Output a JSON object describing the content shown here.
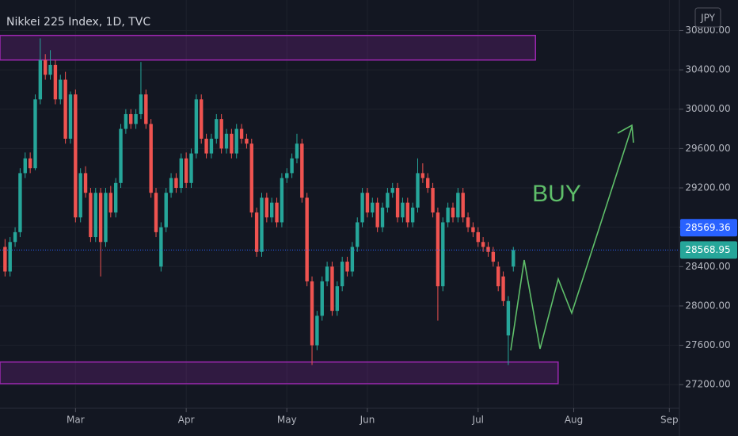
{
  "chart_data": {
    "type": "candlestick",
    "title": "Nikkei 225 Index, 1D, TVC",
    "currency": "JPY",
    "annotation": "BUY",
    "up_color": "#26a69a",
    "down_color": "#ef5350",
    "candles": [
      [
        28600,
        28680,
        28300,
        28350
      ],
      [
        28350,
        28700,
        28300,
        28650
      ],
      [
        28650,
        28800,
        28600,
        28750
      ],
      [
        28750,
        29400,
        28700,
        29350
      ],
      [
        29350,
        29560,
        29300,
        29500
      ],
      [
        29500,
        29560,
        29350,
        29400
      ],
      [
        29400,
        30150,
        29380,
        30100
      ],
      [
        30100,
        30720,
        30050,
        30500
      ],
      [
        30500,
        30560,
        30300,
        30350
      ],
      [
        30350,
        30600,
        30300,
        30450
      ],
      [
        30450,
        30500,
        30050,
        30100
      ],
      [
        30100,
        30350,
        30050,
        30300
      ],
      [
        30300,
        30380,
        29650,
        29700
      ],
      [
        29700,
        30180,
        29650,
        30150
      ],
      [
        30150,
        30200,
        28850,
        28900
      ],
      [
        28900,
        29400,
        28850,
        29350
      ],
      [
        29350,
        29420,
        29100,
        29150
      ],
      [
        29150,
        29200,
        28650,
        28700
      ],
      [
        28700,
        29200,
        28650,
        29150
      ],
      [
        29150,
        29200,
        28300,
        28650
      ],
      [
        28650,
        29200,
        28600,
        29150
      ],
      [
        29150,
        29220,
        28900,
        28950
      ],
      [
        28950,
        29300,
        28900,
        29250
      ],
      [
        29250,
        29850,
        29200,
        29800
      ],
      [
        29800,
        30000,
        29750,
        29950
      ],
      [
        29950,
        30000,
        29800,
        29850
      ],
      [
        29850,
        30000,
        29800,
        29950
      ],
      [
        29950,
        30480,
        29900,
        30150
      ],
      [
        30150,
        30200,
        29800,
        29850
      ],
      [
        29850,
        29900,
        29100,
        29150
      ],
      [
        29150,
        29200,
        28700,
        28750
      ],
      [
        28400,
        28850,
        28350,
        28800
      ],
      [
        28800,
        29200,
        28750,
        29150
      ],
      [
        29150,
        29350,
        29100,
        29300
      ],
      [
        29300,
        29350,
        29150,
        29200
      ],
      [
        29200,
        29550,
        29150,
        29500
      ],
      [
        29500,
        29560,
        29200,
        29250
      ],
      [
        29250,
        29600,
        29200,
        29550
      ],
      [
        29550,
        30150,
        29500,
        30100
      ],
      [
        30100,
        30150,
        29650,
        29700
      ],
      [
        29700,
        29750,
        29500,
        29550
      ],
      [
        29550,
        29750,
        29500,
        29700
      ],
      [
        29700,
        29950,
        29650,
        29900
      ],
      [
        29900,
        29950,
        29550,
        29600
      ],
      [
        29600,
        29800,
        29550,
        29750
      ],
      [
        29750,
        29800,
        29500,
        29550
      ],
      [
        29550,
        29850,
        29500,
        29800
      ],
      [
        29800,
        29850,
        29650,
        29700
      ],
      [
        29700,
        29750,
        29600,
        29650
      ],
      [
        29650,
        29700,
        28900,
        28950
      ],
      [
        28950,
        29000,
        28500,
        28550
      ],
      [
        28550,
        29150,
        28500,
        29100
      ],
      [
        29100,
        29150,
        28850,
        28900
      ],
      [
        28900,
        29100,
        28850,
        29050
      ],
      [
        29050,
        29100,
        28800,
        28850
      ],
      [
        28850,
        29350,
        28800,
        29300
      ],
      [
        29300,
        29400,
        29250,
        29350
      ],
      [
        29350,
        29550,
        29300,
        29500
      ],
      [
        29500,
        29750,
        29450,
        29650
      ],
      [
        29650,
        29700,
        29050,
        29100
      ],
      [
        29100,
        29150,
        28200,
        28250
      ],
      [
        28250,
        28300,
        27400,
        27600
      ],
      [
        27600,
        27950,
        27550,
        27900
      ],
      [
        27900,
        28300,
        27850,
        28250
      ],
      [
        28250,
        28450,
        28200,
        28400
      ],
      [
        28400,
        28450,
        27900,
        27950
      ],
      [
        27950,
        28250,
        27900,
        28200
      ],
      [
        28200,
        28500,
        28150,
        28450
      ],
      [
        28450,
        28500,
        28300,
        28350
      ],
      [
        28350,
        28650,
        28300,
        28600
      ],
      [
        28600,
        28900,
        28550,
        28850
      ],
      [
        28850,
        29200,
        28800,
        29150
      ],
      [
        29150,
        29200,
        28900,
        28950
      ],
      [
        28950,
        29100,
        28900,
        29050
      ],
      [
        29050,
        29100,
        28750,
        28800
      ],
      [
        28800,
        29050,
        28750,
        29000
      ],
      [
        29000,
        29200,
        28950,
        29150
      ],
      [
        29150,
        29250,
        29100,
        29200
      ],
      [
        29200,
        29250,
        28850,
        28900
      ],
      [
        28900,
        29100,
        28850,
        29050
      ],
      [
        29050,
        29100,
        28800,
        28850
      ],
      [
        28850,
        29050,
        28800,
        29000
      ],
      [
        29000,
        29500,
        28950,
        29350
      ],
      [
        29350,
        29450,
        29250,
        29300
      ],
      [
        29300,
        29350,
        29150,
        29200
      ],
      [
        29200,
        29250,
        28900,
        28950
      ],
      [
        28950,
        29000,
        27850,
        28200
      ],
      [
        28200,
        28900,
        28150,
        28850
      ],
      [
        28850,
        29050,
        28800,
        29000
      ],
      [
        29000,
        29050,
        28850,
        28900
      ],
      [
        28900,
        29200,
        28850,
        29150
      ],
      [
        29150,
        29200,
        28850,
        28900
      ],
      [
        28900,
        28950,
        28750,
        28800
      ],
      [
        28800,
        28850,
        28700,
        28750
      ],
      [
        28750,
        28800,
        28600,
        28650
      ],
      [
        28650,
        28700,
        28550,
        28600
      ],
      [
        28600,
        28650,
        28500,
        28550
      ],
      [
        28550,
        28600,
        28400,
        28450
      ],
      [
        28400,
        28450,
        28150,
        28200
      ],
      [
        28300,
        28350,
        28000,
        28050
      ],
      [
        27700,
        28100,
        27400,
        28050
      ],
      [
        28400,
        28600,
        28350,
        28568.95
      ]
    ],
    "xlim": [
      -1,
      134
    ],
    "xticks": [
      {
        "value": 14,
        "label": "Mar"
      },
      {
        "value": 36,
        "label": "Apr"
      },
      {
        "value": 56,
        "label": "May"
      },
      {
        "value": 72,
        "label": "Jun"
      },
      {
        "value": 94,
        "label": "Jul"
      },
      {
        "value": 113,
        "label": "Aug"
      },
      {
        "value": 132,
        "label": "Sep"
      }
    ],
    "ylim": [
      26960,
      31110
    ],
    "yticks": [
      {
        "value": 27200,
        "label": "27200.00"
      },
      {
        "value": 27600,
        "label": "27600.00"
      },
      {
        "value": 28000,
        "label": "28000.00"
      },
      {
        "value": 28400,
        "label": "28400.00"
      },
      {
        "value": 28800,
        "label": "28800.00"
      },
      {
        "value": 29200,
        "label": "29200.00"
      },
      {
        "value": 29600,
        "label": "29600.00"
      },
      {
        "value": 30000,
        "label": "30000.00"
      },
      {
        "value": 30400,
        "label": "30400.00"
      },
      {
        "value": 30800,
        "label": "30800.00"
      }
    ],
    "grid": true,
    "zones": [
      {
        "from": 30500,
        "to": 30750,
        "end": 105.4,
        "color": "#9c27b0"
      },
      {
        "from": 27210,
        "to": 27430,
        "end": 109.9,
        "color": "#9c27b0"
      }
    ],
    "price_labels": [
      {
        "value": 28569.36,
        "color": "#2962ff"
      },
      {
        "value": 28568.95,
        "color": "#26a69a"
      }
    ]
  }
}
